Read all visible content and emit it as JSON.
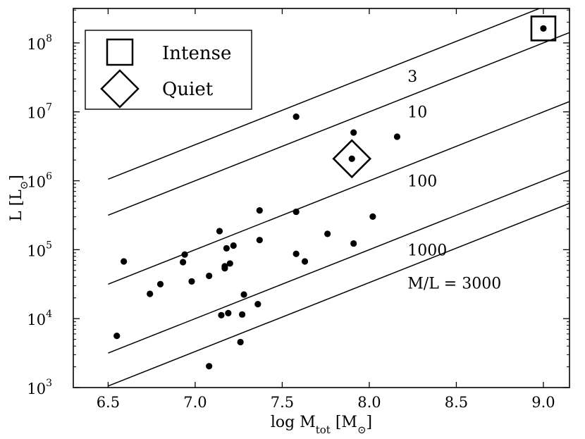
{
  "chart_data": {
    "type": "scatter",
    "title": "",
    "xlabel": "log M_tot [M_⊙]",
    "xlabel_parts": {
      "main": "log M",
      "sub": "tot",
      "unit_open": " [M",
      "unit_sub": "⊙",
      "unit_close": "]"
    },
    "ylabel": "L [L_⊙]",
    "ylabel_parts": {
      "main": "L [L",
      "sub": "⊙",
      "close": "]"
    },
    "xlim": [
      6.3,
      9.15
    ],
    "ylim_log10": [
      3,
      8.5
    ],
    "yscale": "log",
    "grid": false,
    "x_ticks": [
      6.5,
      7.0,
      7.5,
      8.0,
      8.5,
      9.0
    ],
    "x_tick_labels": [
      "6.5",
      "7.0",
      "7.5",
      "8.0",
      "8.5",
      "9.0"
    ],
    "y_ticks_log10": [
      3,
      4,
      5,
      6,
      7,
      8
    ],
    "y_tick_labels": [
      {
        "base": "10",
        "exp": "3"
      },
      {
        "base": "10",
        "exp": "4"
      },
      {
        "base": "10",
        "exp": "5"
      },
      {
        "base": "10",
        "exp": "6"
      },
      {
        "base": "10",
        "exp": "7"
      },
      {
        "base": "10",
        "exp": "8"
      }
    ],
    "ml_lines": [
      {
        "ml": 3,
        "label": "3",
        "label_at": [
          8.22,
          7.52
        ]
      },
      {
        "ml": 10,
        "label": "10",
        "label_at": [
          8.22,
          7.0
        ]
      },
      {
        "ml": 100,
        "label": "100",
        "label_at": [
          8.22,
          6.0
        ]
      },
      {
        "ml": 1000,
        "label": "1000",
        "label_at": [
          8.22,
          5.0
        ]
      },
      {
        "ml": 3000,
        "label": "M/L = 3000",
        "label_at": [
          8.22,
          4.52
        ]
      }
    ],
    "ml_line_x_start": 6.5,
    "series": [
      {
        "marker": "dot",
        "points": [
          [
            6.55,
            3.75
          ],
          [
            6.59,
            4.83
          ],
          [
            6.74,
            4.36
          ],
          [
            6.8,
            4.5
          ],
          [
            6.93,
            4.82
          ],
          [
            6.94,
            4.93
          ],
          [
            6.98,
            4.54
          ],
          [
            7.08,
            4.62
          ],
          [
            7.08,
            3.31
          ],
          [
            7.14,
            5.27
          ],
          [
            7.15,
            4.05
          ],
          [
            7.17,
            4.76
          ],
          [
            7.17,
            4.73
          ],
          [
            7.18,
            5.02
          ],
          [
            7.19,
            4.08
          ],
          [
            7.2,
            4.8
          ],
          [
            7.22,
            5.06
          ],
          [
            7.26,
            3.66
          ],
          [
            7.27,
            4.06
          ],
          [
            7.28,
            4.35
          ],
          [
            7.36,
            4.21
          ],
          [
            7.37,
            5.57
          ],
          [
            7.37,
            5.14
          ],
          [
            7.58,
            6.93
          ],
          [
            7.58,
            5.55
          ],
          [
            7.58,
            4.94
          ],
          [
            7.63,
            4.83
          ],
          [
            7.76,
            5.23
          ],
          [
            7.9,
            6.32
          ],
          [
            7.91,
            6.7
          ],
          [
            7.91,
            5.09
          ],
          [
            8.02,
            5.48
          ],
          [
            8.16,
            6.64
          ],
          [
            9.0,
            8.21
          ]
        ]
      }
    ],
    "highlighted": [
      {
        "name": "Intense",
        "marker": "square",
        "x": 9.0,
        "y_log10": 8.21
      },
      {
        "name": "Quiet",
        "marker": "diamond",
        "x": 7.9,
        "y_log10": 6.32
      }
    ],
    "legend": {
      "placement": "top-left",
      "entries": [
        {
          "marker": "square",
          "label": "Intense"
        },
        {
          "marker": "diamond",
          "label": "Quiet"
        }
      ]
    }
  }
}
